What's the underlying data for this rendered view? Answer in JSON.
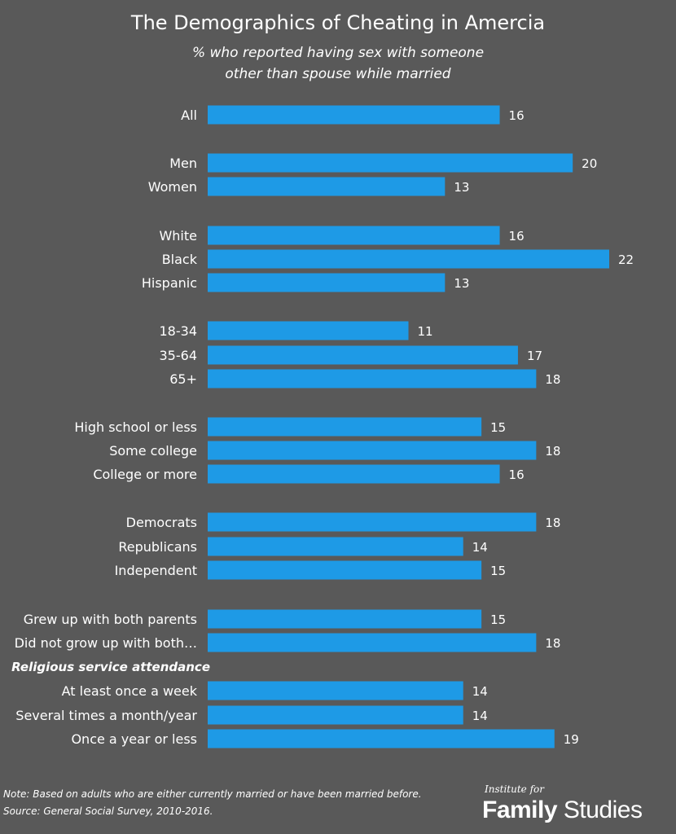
{
  "chart_data": {
    "type": "bar",
    "orientation": "horizontal",
    "title": "The Demographics of Cheating in Amercia",
    "subtitle_lines": [
      "% who reported having sex with someone",
      "other than spouse while married"
    ],
    "categories": [
      "All",
      "Men",
      "Women",
      "White",
      "Black",
      "Hispanic",
      "18-34",
      "35-64",
      "65+",
      "High school or less",
      "Some college",
      "College or more",
      "Democrats",
      "Republicans",
      "Independent",
      "Grew up with both parents",
      "Did not grow up with both…",
      "At least once a week",
      "Several times a month/year",
      "Once a year or less"
    ],
    "values": [
      16,
      20,
      13,
      16,
      22,
      13,
      11,
      17,
      18,
      15,
      18,
      16,
      18,
      14,
      15,
      15,
      18,
      14,
      14,
      19
    ],
    "section_labels": [
      "Religious service attendance"
    ],
    "bar_color": "#1e9ae6",
    "background_color": "#595959",
    "grid": false,
    "legend": "none",
    "xlim": [
      0,
      22
    ]
  },
  "notes": [
    "Note: Based on adults who are either currently married or have been married before.",
    "Source: General Social Survey, 2010-2016."
  ],
  "logo": {
    "small_text": "Institute for",
    "bold_text": "Family",
    "regular_text": "Studies"
  }
}
